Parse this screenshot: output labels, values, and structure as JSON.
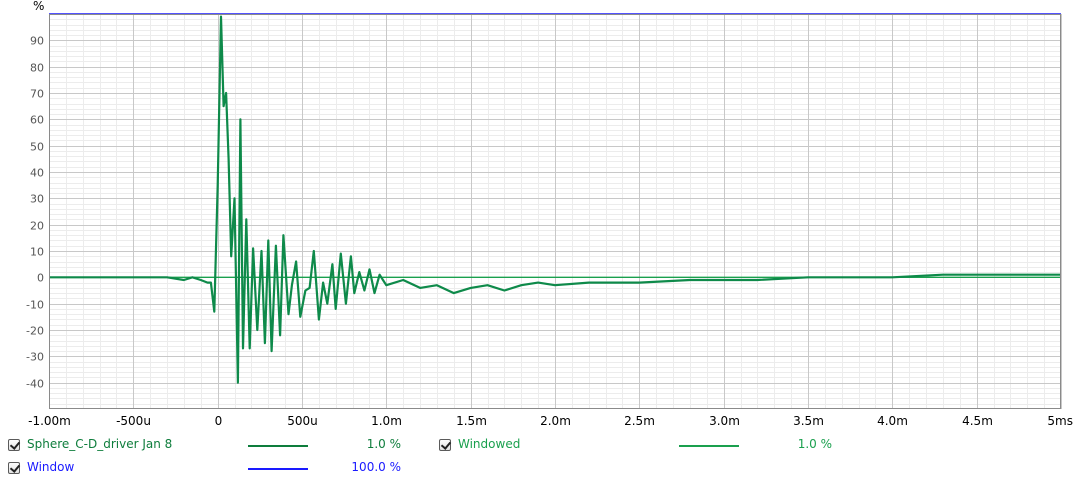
{
  "chart_data": {
    "type": "line",
    "ylabel": "%",
    "ylim": [
      -50,
      100
    ],
    "xlim": [
      -1.0,
      5.0
    ],
    "x_unit": "ms",
    "y_ticks": [
      {
        "v": 90,
        "label": "90"
      },
      {
        "v": 80,
        "label": "80"
      },
      {
        "v": 70,
        "label": "70"
      },
      {
        "v": 60,
        "label": "60"
      },
      {
        "v": 50,
        "label": "50"
      },
      {
        "v": 40,
        "label": "40"
      },
      {
        "v": 30,
        "label": "30"
      },
      {
        "v": 20,
        "label": "20"
      },
      {
        "v": 10,
        "label": "10"
      },
      {
        "v": 0,
        "label": "0"
      },
      {
        "v": -10,
        "label": "-10"
      },
      {
        "v": -20,
        "label": "-20"
      },
      {
        "v": -30,
        "label": "-30"
      },
      {
        "v": -40,
        "label": "-40"
      }
    ],
    "x_ticks": [
      {
        "v": -1.0,
        "label": "-1.00m"
      },
      {
        "v": -0.5,
        "label": "-500u"
      },
      {
        "v": 0.0,
        "label": "0"
      },
      {
        "v": 0.5,
        "label": "500u"
      },
      {
        "v": 1.0,
        "label": "1.0m"
      },
      {
        "v": 1.5,
        "label": "1.5m"
      },
      {
        "v": 2.0,
        "label": "2.0m"
      },
      {
        "v": 2.5,
        "label": "2.5m"
      },
      {
        "v": 3.0,
        "label": "3.0m"
      },
      {
        "v": 3.5,
        "label": "3.5m"
      },
      {
        "v": 4.0,
        "label": "4.0m"
      },
      {
        "v": 4.5,
        "label": "4.5m"
      },
      {
        "v": 5.0,
        "label": "5ms"
      }
    ],
    "grid": true,
    "series": [
      {
        "name": "Sphere_C-D_driver Jan 8",
        "color": "#0e8a4a",
        "x": [
          -1.0,
          -0.3,
          -0.2,
          -0.15,
          -0.1,
          -0.06,
          -0.04,
          -0.02,
          0.0,
          0.02,
          0.035,
          0.05,
          0.065,
          0.08,
          0.1,
          0.12,
          0.135,
          0.15,
          0.17,
          0.19,
          0.21,
          0.235,
          0.26,
          0.28,
          0.3,
          0.32,
          0.345,
          0.37,
          0.39,
          0.42,
          0.44,
          0.465,
          0.49,
          0.52,
          0.545,
          0.57,
          0.6,
          0.625,
          0.65,
          0.68,
          0.7,
          0.73,
          0.76,
          0.79,
          0.81,
          0.84,
          0.87,
          0.9,
          0.93,
          0.96,
          1.0,
          1.1,
          1.2,
          1.3,
          1.4,
          1.5,
          1.6,
          1.7,
          1.8,
          1.9,
          2.0,
          2.2,
          2.5,
          2.8,
          3.0,
          3.2,
          3.5,
          3.8,
          4.0,
          4.3,
          4.5,
          4.7,
          5.0
        ],
        "values": [
          0,
          0,
          -1,
          0,
          -1,
          -2,
          -2,
          -13,
          35,
          99,
          65,
          70,
          45,
          8,
          30,
          -40,
          60,
          -27,
          22,
          -27,
          11,
          -20,
          10,
          -25,
          14,
          -28,
          12,
          -22,
          16,
          -14,
          -3,
          6,
          -15,
          -5,
          -4,
          10,
          -16,
          -2,
          -10,
          5,
          -12,
          9,
          -10,
          8,
          -6,
          2,
          -5,
          3,
          -6,
          1,
          -3,
          -1,
          -4,
          -3,
          -6,
          -4,
          -3,
          -5,
          -3,
          -2,
          -3,
          -2,
          -2,
          -1,
          -1,
          -1,
          0,
          0,
          0,
          1,
          1,
          1,
          1
        ]
      },
      {
        "name": "Windowed",
        "color": "#1aa04e",
        "x": [
          -1.0,
          5.0
        ],
        "values": [
          0,
          0
        ]
      },
      {
        "name": "Window",
        "color": "#1a1aff",
        "x": [
          -1.0,
          5.0
        ],
        "values": [
          100,
          100
        ]
      }
    ]
  },
  "legend": [
    {
      "name": "Sphere_C-D_driver Jan 8",
      "value": "1.0 %",
      "color": "#0e7d3c"
    },
    {
      "name": "Windowed",
      "value": "1.0 %",
      "color": "#1aa04e"
    },
    {
      "name": "Window",
      "value": "100.0 %",
      "color": "#1a1aff"
    }
  ]
}
